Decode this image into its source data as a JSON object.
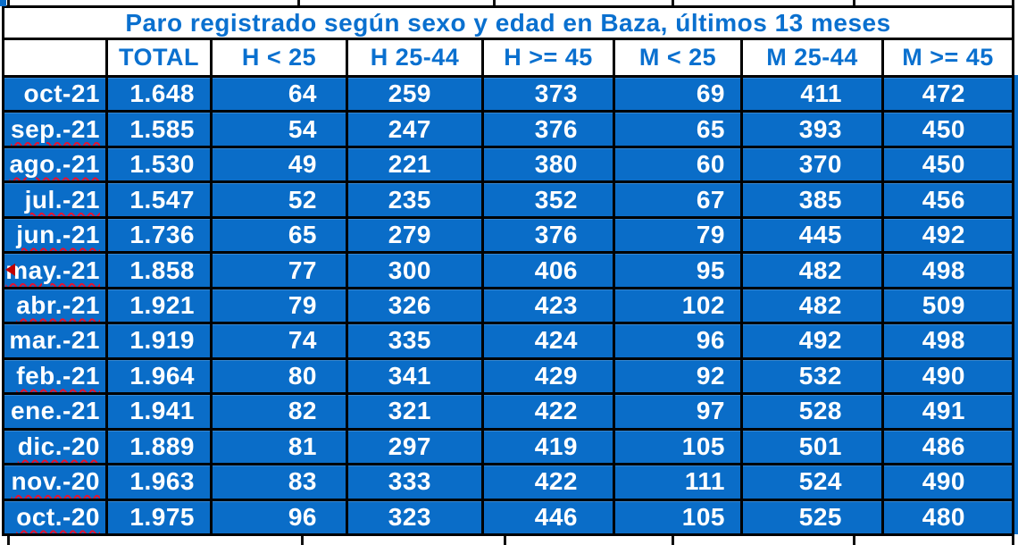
{
  "table": {
    "title": "Paro registrado según sexo y edad en Baza, últimos 13 meses",
    "columns": [
      "",
      "TOTAL",
      "H < 25",
      "H 25-44",
      "H >= 45",
      "M < 25",
      "M 25-44",
      "M >= 45"
    ],
    "rows": [
      {
        "month": "oct-21",
        "misspelled": false,
        "comment_marker": false,
        "values": [
          "1.648",
          "64",
          "259",
          "373",
          "69",
          "411",
          "472"
        ]
      },
      {
        "month": "sep.-21",
        "misspelled": true,
        "comment_marker": false,
        "values": [
          "1.585",
          "54",
          "247",
          "376",
          "65",
          "393",
          "450"
        ]
      },
      {
        "month": "ago.-21",
        "misspelled": true,
        "comment_marker": false,
        "values": [
          "1.530",
          "49",
          "221",
          "380",
          "60",
          "370",
          "450"
        ]
      },
      {
        "month": "jul.-21",
        "misspelled": true,
        "comment_marker": false,
        "values": [
          "1.547",
          "52",
          "235",
          "352",
          "67",
          "385",
          "456"
        ]
      },
      {
        "month": "jun.-21",
        "misspelled": true,
        "comment_marker": false,
        "values": [
          "1.736",
          "65",
          "279",
          "376",
          "79",
          "445",
          "492"
        ]
      },
      {
        "month": "may.-21",
        "misspelled": true,
        "comment_marker": true,
        "values": [
          "1.858",
          "77",
          "300",
          "406",
          "95",
          "482",
          "498"
        ]
      },
      {
        "month": "abr.-21",
        "misspelled": true,
        "comment_marker": false,
        "values": [
          "1.921",
          "79",
          "326",
          "423",
          "102",
          "482",
          "509"
        ]
      },
      {
        "month": "mar.-21",
        "misspelled": false,
        "comment_marker": false,
        "values": [
          "1.919",
          "74",
          "335",
          "424",
          "96",
          "492",
          "498"
        ]
      },
      {
        "month": "feb.-21",
        "misspelled": true,
        "comment_marker": false,
        "values": [
          "1.964",
          "80",
          "341",
          "429",
          "92",
          "532",
          "490"
        ]
      },
      {
        "month": "ene.-21",
        "misspelled": false,
        "comment_marker": false,
        "values": [
          "1.941",
          "82",
          "321",
          "422",
          "97",
          "528",
          "491"
        ]
      },
      {
        "month": "dic.-20",
        "misspelled": true,
        "comment_marker": false,
        "values": [
          "1.889",
          "81",
          "297",
          "419",
          "105",
          "501",
          "486"
        ]
      },
      {
        "month": "nov.-20",
        "misspelled": true,
        "comment_marker": false,
        "values": [
          "1.963",
          "83",
          "333",
          "422",
          "111",
          "524",
          "490"
        ]
      },
      {
        "month": "oct.-20",
        "misspelled": true,
        "comment_marker": false,
        "values": [
          "1.975",
          "96",
          "323",
          "446",
          "105",
          "525",
          "480"
        ]
      }
    ]
  },
  "colors": {
    "cell_blue": "#0a6dc8",
    "header_text_blue": "#0a70cf",
    "border_black": "#000000",
    "squiggle_red": "#e8112d",
    "comment_marker_red": "#c00000",
    "cell_text_white": "#ffffff"
  }
}
